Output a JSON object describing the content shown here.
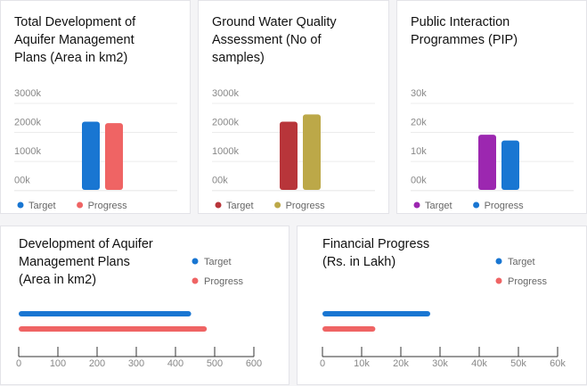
{
  "chart_data": [
    {
      "type": "bar",
      "title": "Total Development of\nAquifer Management\nPlans (Area in km2)",
      "y_ticks": [
        "00k",
        "1000k",
        "2000k",
        "3000k"
      ],
      "ylim": [
        0,
        3000
      ],
      "categories": [
        "Target",
        "Progress"
      ],
      "values": [
        2000,
        1950
      ],
      "colors": [
        "#1976d2",
        "#ef6464"
      ],
      "grid": true,
      "legend": "bottom-left"
    },
    {
      "type": "bar",
      "title": "Ground Water Quality\nAssessment (No of\nsamples)",
      "y_ticks": [
        "00k",
        "1000k",
        "2000k",
        "3000k"
      ],
      "ylim": [
        0,
        3000
      ],
      "categories": [
        "Target",
        "Progress"
      ],
      "values": [
        2000,
        2250
      ],
      "colors": [
        "#b8353a",
        "#bca848"
      ],
      "grid": true,
      "legend": "bottom-left"
    },
    {
      "type": "bar",
      "title": "Public Interaction\nProgrammes (PIP)",
      "y_ticks": [
        "00k",
        "10k",
        "20k",
        "30k"
      ],
      "ylim": [
        0,
        30
      ],
      "categories": [
        "Target",
        "Progress"
      ],
      "values": [
        15.5,
        13.5
      ],
      "colors": [
        "#9c27b0",
        "#1976d2"
      ],
      "grid": true,
      "legend": "bottom-left"
    },
    {
      "type": "bar",
      "orientation": "horizontal",
      "title": "Development of Aquifer\nManagement Plans\n(Area in km2)",
      "x_ticks": [
        "0",
        "100",
        "200",
        "300",
        "400",
        "500",
        "600"
      ],
      "xlim": [
        0,
        600
      ],
      "categories": [
        "Target",
        "Progress"
      ],
      "values": [
        440,
        480
      ],
      "colors": [
        "#1976d2",
        "#ef6464"
      ],
      "grid": true,
      "legend": "top-right"
    },
    {
      "type": "bar",
      "orientation": "horizontal",
      "title": "Financial Progress\n(Rs. in Lakh)",
      "x_ticks": [
        "0",
        "10k",
        "20k",
        "30k",
        "40k",
        "50k",
        "60k"
      ],
      "xlim": [
        0,
        60000
      ],
      "categories": [
        "Target",
        "Progress"
      ],
      "values": [
        27500,
        13500
      ],
      "colors": [
        "#1976d2",
        "#ef6464"
      ],
      "grid": true,
      "legend": "top-right"
    }
  ]
}
